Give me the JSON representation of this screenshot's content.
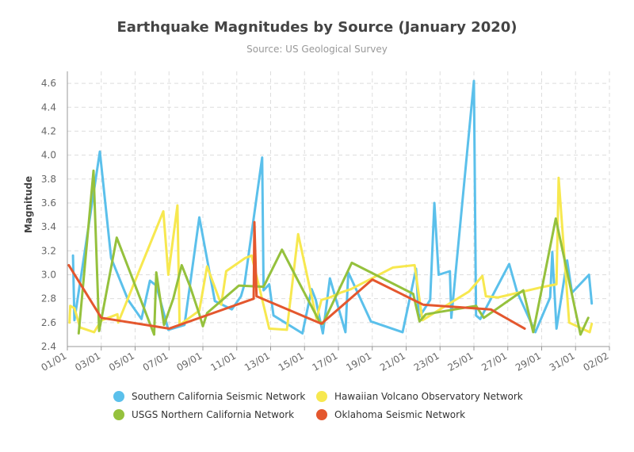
{
  "chart_data": {
    "type": "line",
    "title": "Earthquake Magnitudes by Source (January 2020)",
    "subtitle": "Source: US Geological Survey",
    "xlabel": "",
    "ylabel": "Magnitude",
    "xlim": [
      "2020-01-01",
      "2020-02-02"
    ],
    "ylim": [
      2.4,
      4.7
    ],
    "x_ticks": [
      "01/01",
      "03/01",
      "05/01",
      "07/01",
      "09/01",
      "11/01",
      "13/01",
      "15/01",
      "17/01",
      "19/01",
      "21/01",
      "23/01",
      "25/01",
      "27/01",
      "29/01",
      "31/01",
      "02/02"
    ],
    "y_ticks": [
      "2.4",
      "2.6",
      "2.8",
      "3.0",
      "3.2",
      "3.4",
      "3.6",
      "3.8",
      "4.0",
      "4.2",
      "4.4",
      "4.6"
    ],
    "grid": true,
    "legend_position": "bottom",
    "series": [
      {
        "name": "Southern California Seismic Network",
        "color": "#5bc0eb",
        "points": [
          [
            "2020-01-01T08:00",
            3.16
          ],
          [
            "2020-01-01T10:00",
            2.62
          ],
          [
            "2020-01-02T22:00",
            4.03
          ],
          [
            "2020-01-03T14:00",
            3.14
          ],
          [
            "2020-01-04T14:00",
            2.79
          ],
          [
            "2020-01-05T09:00",
            2.63
          ],
          [
            "2020-01-05T21:00",
            2.95
          ],
          [
            "2020-01-06T06:00",
            2.91
          ],
          [
            "2020-01-06T23:00",
            2.54
          ],
          [
            "2020-01-07T22:00",
            2.58
          ],
          [
            "2020-01-08T19:00",
            3.48
          ],
          [
            "2020-01-09T17:00",
            2.78
          ],
          [
            "2020-01-10T17:00",
            2.71
          ],
          [
            "2020-01-11T06:00",
            2.82
          ],
          [
            "2020-01-11T11:00",
            2.92
          ],
          [
            "2020-01-12T12:00",
            3.98
          ],
          [
            "2020-01-12T14:00",
            2.87
          ],
          [
            "2020-01-12T22:00",
            2.92
          ],
          [
            "2020-01-13T04:00",
            2.66
          ],
          [
            "2020-01-14T21:00",
            2.51
          ],
          [
            "2020-01-15T10:00",
            2.88
          ],
          [
            "2020-01-15T16:00",
            2.79
          ],
          [
            "2020-01-16T02:00",
            2.51
          ],
          [
            "2020-01-16T12:00",
            2.97
          ],
          [
            "2020-01-17T10:00",
            2.52
          ],
          [
            "2020-01-17T14:00",
            3.02
          ],
          [
            "2020-01-18T22:00",
            2.61
          ],
          [
            "2020-01-20T19:00",
            2.52
          ],
          [
            "2020-01-21T14:00",
            3.05
          ],
          [
            "2020-01-21T18:00",
            2.64
          ],
          [
            "2020-01-22T10:00",
            2.79
          ],
          [
            "2020-01-22T16:00",
            3.6
          ],
          [
            "2020-01-22T22:00",
            3.0
          ],
          [
            "2020-01-23T14:00",
            3.03
          ],
          [
            "2020-01-23T16:00",
            2.64
          ],
          [
            "2020-01-25T00:00",
            4.62
          ],
          [
            "2020-01-25T03:00",
            2.66
          ],
          [
            "2020-01-25T09:00",
            2.63
          ],
          [
            "2020-01-27T02:00",
            3.09
          ],
          [
            "2020-01-27T13:00",
            2.86
          ],
          [
            "2020-01-28T15:00",
            2.52
          ],
          [
            "2020-01-29T12:00",
            2.81
          ],
          [
            "2020-01-29T15:00",
            3.19
          ],
          [
            "2020-01-29T21:00",
            2.55
          ],
          [
            "2020-01-30T12:00",
            3.12
          ],
          [
            "2020-01-30T19:00",
            2.85
          ],
          [
            "2020-01-31T19:00",
            3.0
          ],
          [
            "2020-01-31T23:00",
            2.76
          ]
        ]
      },
      {
        "name": "Hawaiian Volcano Observatory Network",
        "color": "#f7e84f",
        "points": [
          [
            "2020-01-01T03:00",
            2.6
          ],
          [
            "2020-01-01T04:00",
            2.74
          ],
          [
            "2020-01-01T10:00",
            2.72
          ],
          [
            "2020-01-01T18:00",
            2.56
          ],
          [
            "2020-01-02T14:00",
            2.52
          ],
          [
            "2020-01-02T18:00",
            2.56
          ],
          [
            "2020-01-03T01:00",
            2.62
          ],
          [
            "2020-01-03T23:00",
            2.67
          ],
          [
            "2020-01-04T00:00",
            2.6
          ],
          [
            "2020-01-06T16:00",
            3.53
          ],
          [
            "2020-01-06T23:00",
            3.0
          ],
          [
            "2020-01-07T12:00",
            3.58
          ],
          [
            "2020-01-07T15:00",
            2.58
          ],
          [
            "2020-01-08T19:00",
            2.7
          ],
          [
            "2020-01-09T06:00",
            3.07
          ],
          [
            "2020-01-10T02:00",
            2.75
          ],
          [
            "2020-01-10T09:00",
            3.03
          ],
          [
            "2020-01-11T12:00",
            3.14
          ],
          [
            "2020-01-11T21:00",
            3.16
          ],
          [
            "2020-01-12T22:00",
            2.55
          ],
          [
            "2020-01-13T23:00",
            2.54
          ],
          [
            "2020-01-14T15:00",
            3.34
          ],
          [
            "2020-01-15T17:00",
            2.63
          ],
          [
            "2020-01-16T00:00",
            2.79
          ],
          [
            "2020-01-16T12:00",
            2.81
          ],
          [
            "2020-01-17T03:00",
            2.85
          ],
          [
            "2020-01-17T18:00",
            2.88
          ],
          [
            "2020-01-20T05:00",
            3.06
          ],
          [
            "2020-01-21T12:00",
            3.08
          ],
          [
            "2020-01-21T23:00",
            2.62
          ],
          [
            "2020-01-24T17:00",
            2.86
          ],
          [
            "2020-01-25T12:00",
            2.99
          ],
          [
            "2020-01-25T17:00",
            2.82
          ],
          [
            "2020-01-26T10:00",
            2.81
          ],
          [
            "2020-01-29T03:00",
            2.9
          ],
          [
            "2020-01-29T21:00",
            2.92
          ],
          [
            "2020-01-30T00:00",
            3.81
          ],
          [
            "2020-01-30T15:00",
            2.6
          ],
          [
            "2020-01-31T20:00",
            2.52
          ],
          [
            "2020-01-31T23:00",
            2.59
          ]
        ]
      },
      {
        "name": "USGS Northern California Network",
        "color": "#95c13d",
        "points": [
          [
            "2020-01-01T16:00",
            2.51
          ],
          [
            "2020-01-02T13:00",
            3.87
          ],
          [
            "2020-01-02T21:00",
            2.53
          ],
          [
            "2020-01-03T22:00",
            3.31
          ],
          [
            "2020-01-06T03:00",
            2.5
          ],
          [
            "2020-01-06T06:00",
            3.02
          ],
          [
            "2020-01-06T17:00",
            2.58
          ],
          [
            "2020-01-07T06:00",
            2.8
          ],
          [
            "2020-01-07T18:00",
            3.08
          ],
          [
            "2020-01-08T06:00",
            2.9
          ],
          [
            "2020-01-08T19:00",
            2.67
          ],
          [
            "2020-01-09T00:00",
            2.57
          ],
          [
            "2020-01-09T06:00",
            2.68
          ],
          [
            "2020-01-11T03:00",
            2.91
          ],
          [
            "2020-01-12T14:00",
            2.9
          ],
          [
            "2020-01-13T16:00",
            3.21
          ],
          [
            "2020-01-14T14:00",
            2.96
          ],
          [
            "2020-01-15T21:00",
            2.61
          ],
          [
            "2020-01-16T02:00",
            2.59
          ],
          [
            "2020-01-17T19:00",
            3.1
          ],
          [
            "2020-01-21T10:00",
            2.84
          ],
          [
            "2020-01-21T19:00",
            2.61
          ],
          [
            "2020-01-22T04:00",
            2.67
          ],
          [
            "2020-01-25T03:00",
            2.74
          ],
          [
            "2020-01-25T14:00",
            2.64
          ],
          [
            "2020-01-27T22:00",
            2.87
          ],
          [
            "2020-01-28T12:00",
            2.52
          ],
          [
            "2020-01-29T20:00",
            3.47
          ],
          [
            "2020-01-31T07:00",
            2.5
          ],
          [
            "2020-01-31T18:00",
            2.64
          ]
        ]
      },
      {
        "name": "Oklahoma Seismic Network",
        "color": "#e4572e",
        "points": [
          [
            "2020-01-01T02:00",
            3.08
          ],
          [
            "2020-01-03T00:00",
            2.64
          ],
          [
            "2020-01-07T00:00",
            2.55
          ],
          [
            "2020-01-12T00:00",
            2.8
          ],
          [
            "2020-01-12T01:00",
            3.44
          ],
          [
            "2020-01-12T04:00",
            2.82
          ],
          [
            "2020-01-16T00:00",
            2.59
          ],
          [
            "2020-01-19T00:00",
            2.96
          ],
          [
            "2020-01-22T00:00",
            2.75
          ],
          [
            "2020-01-26T00:00",
            2.71
          ],
          [
            "2020-01-28T00:00",
            2.55
          ]
        ]
      }
    ]
  }
}
